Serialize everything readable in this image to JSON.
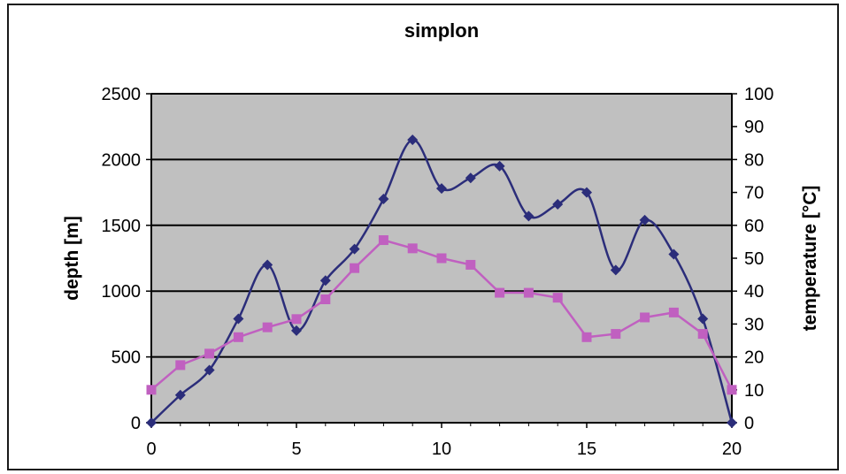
{
  "chart_data": {
    "type": "line",
    "title": "simplon",
    "xlabel": "",
    "ylabel": "depth [m]",
    "y2label": "temperature [°C]",
    "xlim": [
      0,
      20
    ],
    "ylim": [
      0,
      2500
    ],
    "y2lim": [
      0,
      100
    ],
    "x_ticks": [
      "0",
      "5",
      "10",
      "15",
      "20"
    ],
    "y_ticks": [
      "0",
      "500",
      "1000",
      "1500",
      "2000",
      "2500"
    ],
    "y2_ticks": [
      "0",
      "10",
      "20",
      "30",
      "40",
      "50",
      "60",
      "70",
      "80",
      "90",
      "100"
    ],
    "grid": true,
    "legend": "none",
    "plot_background": "#c0c0c0",
    "series": [
      {
        "axis": "left",
        "color": "#2b2d7a",
        "marker": "diamond",
        "smooth": true,
        "x": [
          0,
          1,
          2,
          3,
          4,
          5,
          6,
          7,
          8,
          9,
          10,
          11,
          12,
          13,
          14,
          15,
          16,
          17,
          18,
          19,
          20
        ],
        "values": [
          0,
          210,
          400,
          790,
          1200,
          700,
          1080,
          1320,
          1700,
          2150,
          1780,
          1860,
          1950,
          1570,
          1660,
          1750,
          1160,
          1540,
          1280,
          790,
          0
        ]
      },
      {
        "axis": "right",
        "color": "#c060c0",
        "marker": "square",
        "smooth": false,
        "x": [
          0,
          1,
          2,
          3,
          4,
          5,
          6,
          7,
          8,
          9,
          10,
          11,
          12,
          13,
          14,
          15,
          16,
          17,
          18,
          19,
          20
        ],
        "values": [
          10,
          17.5,
          21,
          26,
          29,
          31.5,
          37.5,
          47,
          55.5,
          53,
          50,
          48,
          39.5,
          39.5,
          38,
          26,
          27,
          32,
          33.5,
          27,
          10
        ]
      }
    ]
  }
}
